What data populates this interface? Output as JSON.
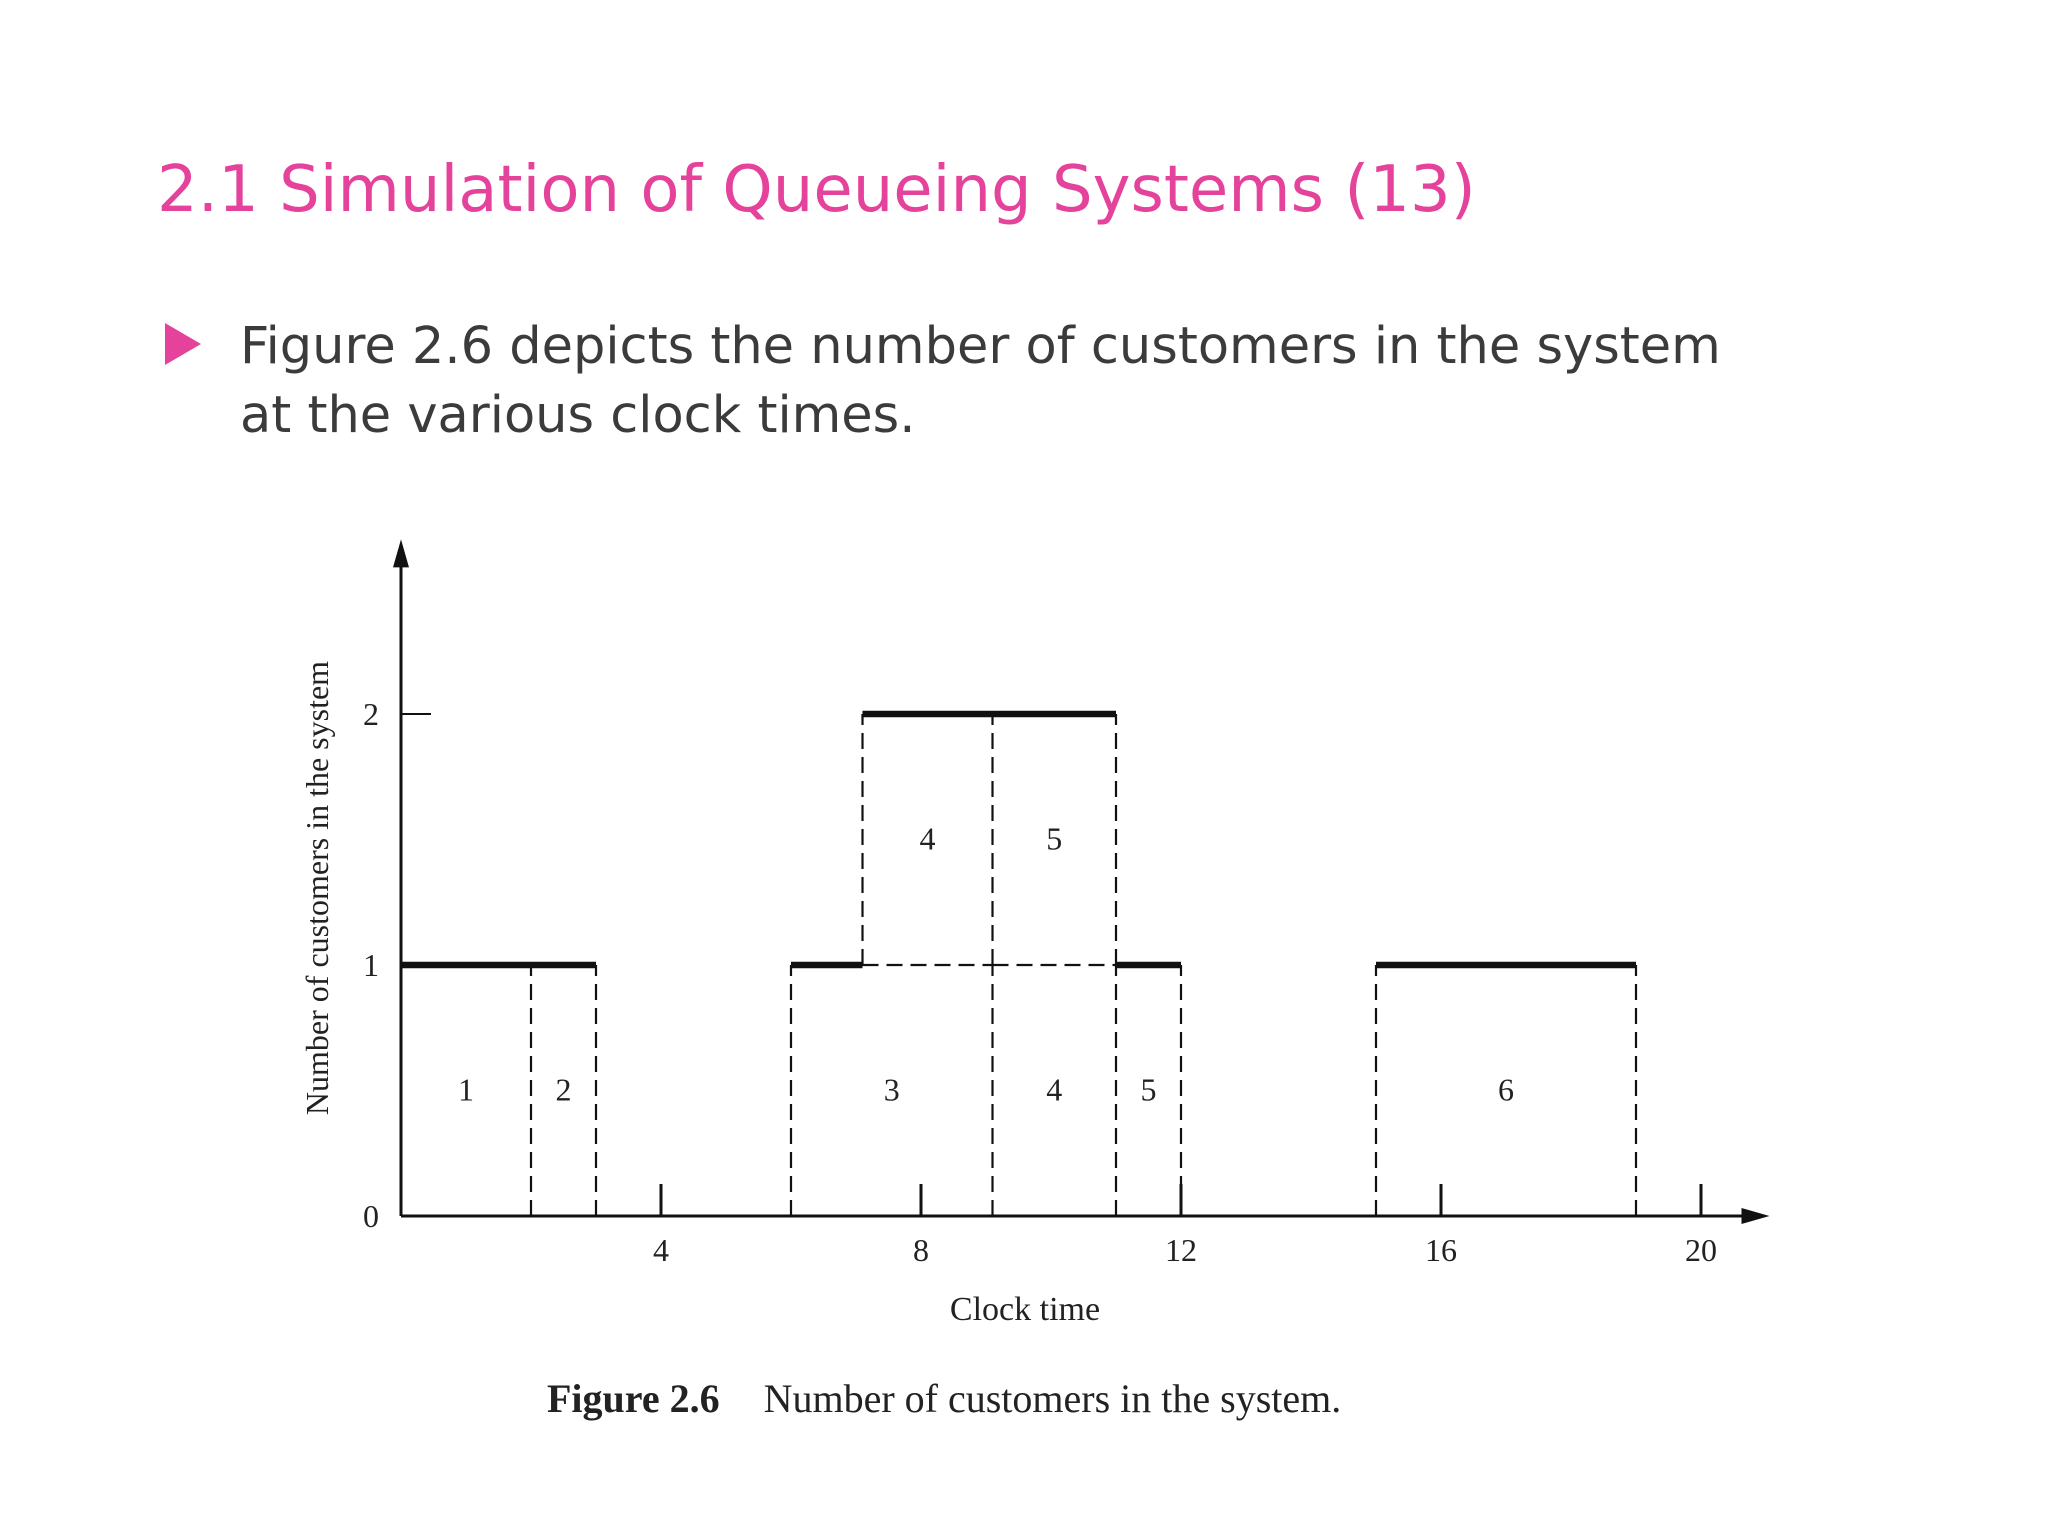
{
  "slide": {
    "title": "2.1 Simulation of Queueing Systems (13)",
    "bullet_text": "Figure 2.6 depicts the number of customers in the system at the various clock times.",
    "accent_color": "#e5439b",
    "text_color": "#3b3b3b",
    "bullet_icon": "triangle-right-icon"
  },
  "figure": {
    "caption_label": "Figure 2.6",
    "caption_text": "Number of customers in the system."
  },
  "chart_data": {
    "type": "line",
    "subtype": "step",
    "xlabel": "Clock time",
    "ylabel": "Number of customers in the system",
    "xlim": [
      0,
      20.5
    ],
    "ylim": [
      0,
      2.6
    ],
    "xticks": [
      4,
      8,
      12,
      16,
      20
    ],
    "yticks": [
      0,
      1,
      2
    ],
    "series": [
      {
        "segments": [
          {
            "x": [
              0,
              3
            ],
            "y": 1
          },
          {
            "x": [
              6,
              7.1
            ],
            "y": 1
          },
          {
            "x": [
              7.1,
              11
            ],
            "y": 2
          },
          {
            "x": [
              11,
              12
            ],
            "y": 1
          },
          {
            "x": [
              15,
              19
            ],
            "y": 1
          }
        ]
      }
    ],
    "customer_blocks": [
      {
        "label": "1",
        "x": [
          0,
          2
        ],
        "level": 1
      },
      {
        "label": "2",
        "x": [
          2,
          3
        ],
        "level": 1
      },
      {
        "label": "3",
        "x": [
          6,
          9.1
        ],
        "level": 1
      },
      {
        "label": "4",
        "x": [
          9.1,
          11
        ],
        "level": 1
      },
      {
        "label": "5",
        "x": [
          11,
          12
        ],
        "level": 1
      },
      {
        "label": "4",
        "x": [
          7.1,
          9.1
        ],
        "level": 2
      },
      {
        "label": "5",
        "x": [
          9.1,
          11
        ],
        "level": 2
      },
      {
        "label": "6",
        "x": [
          15,
          19
        ],
        "level": 1
      }
    ],
    "grid": false,
    "legend": null
  }
}
